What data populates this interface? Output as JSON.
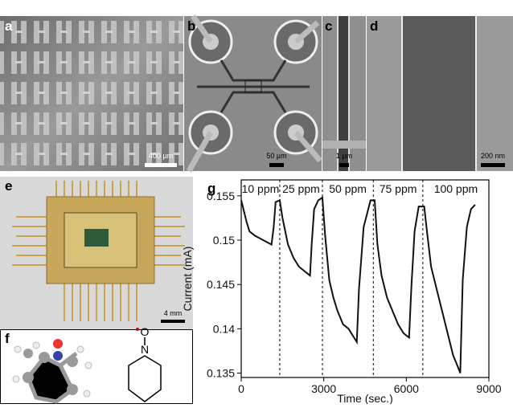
{
  "panels": [
    {
      "label": "a",
      "scalebar": "400 µm"
    },
    {
      "label": "b",
      "scalebar": "50 µm"
    },
    {
      "label": "c",
      "scalebar": "1 µm"
    },
    {
      "label": "d",
      "scalebar": "200 nm"
    },
    {
      "label": "e",
      "scalebar": "4 mm"
    },
    {
      "label": "f"
    },
    {
      "label": "g"
    }
  ],
  "molecule": {
    "atoms": [
      "O",
      "N"
    ]
  },
  "chart_data": {
    "type": "line",
    "x_label": "Time (sec.)",
    "y_label": "Current (mA)",
    "x": [
      0,
      80,
      200,
      300,
      500,
      800,
      1100,
      1180,
      1250,
      1400,
      1500,
      1700,
      1900,
      2100,
      2300,
      2500,
      2560,
      2650,
      2800,
      2950,
      3050,
      3200,
      3350,
      3500,
      3700,
      3900,
      4100,
      4200,
      4280,
      4450,
      4700,
      4850,
      4950,
      5100,
      5300,
      5500,
      5700,
      5900,
      6100,
      6180,
      6300,
      6450,
      6650,
      6750,
      6900,
      7100,
      7300,
      7500,
      7700,
      7900,
      7960,
      8050,
      8200,
      8350,
      8500
    ],
    "series": [
      {
        "name": "Current",
        "color": "#111111",
        "values": [
          0.1545,
          0.1535,
          0.152,
          0.151,
          0.1505,
          0.15,
          0.1495,
          0.1515,
          0.1543,
          0.1545,
          0.1525,
          0.1495,
          0.148,
          0.147,
          0.1465,
          0.146,
          0.1495,
          0.1535,
          0.1545,
          0.1548,
          0.1505,
          0.1455,
          0.1435,
          0.142,
          0.1405,
          0.14,
          0.139,
          0.1385,
          0.1445,
          0.1515,
          0.1545,
          0.1545,
          0.1495,
          0.146,
          0.1435,
          0.142,
          0.1405,
          0.1395,
          0.139,
          0.1445,
          0.151,
          0.1538,
          0.1538,
          0.151,
          0.147,
          0.1445,
          0.142,
          0.1395,
          0.137,
          0.1355,
          0.135,
          0.1455,
          0.1515,
          0.1535,
          0.154
        ]
      }
    ],
    "xlim": [
      0,
      9000
    ],
    "xticks": [
      0,
      3000,
      6000,
      9000
    ],
    "ylim": [
      0.1345,
      0.1568
    ],
    "yticks": [
      0.135,
      0.14,
      0.145,
      0.15,
      0.155
    ],
    "boundaries": [
      1400,
      2950,
      4800,
      6600
    ],
    "annotations": [
      "10 ppm",
      "25 ppm",
      "50 ppm",
      "75 ppm",
      "100 ppm"
    ]
  }
}
